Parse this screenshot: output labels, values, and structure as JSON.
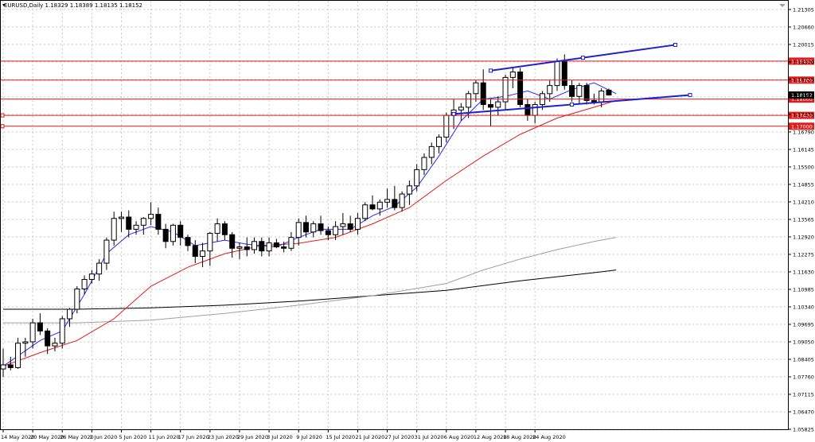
{
  "chart_data": {
    "type": "candlestick",
    "symbol": "EURUSD",
    "timeframe": "Daily",
    "title": "EURUSD,Daily  1.18329 1.18389 1.18135 1.18152",
    "x_labels": [
      "14 May 2020",
      "20 May 2020",
      "26 May 2020",
      "1 Jun 2020",
      "5 Jun 2020",
      "11 Jun 2020",
      "17 Jun 2020",
      "23 Jun 2020",
      "29 Jun 2020",
      "3 Jul 2020",
      "9 Jul 2020",
      "15 Jul 2020",
      "21 Jul 2020",
      "27 Jul 2020",
      "31 Jul 2020",
      "6 Aug 2020",
      "12 Aug 2020",
      "18 Aug 2020",
      "24 Aug 2020"
    ],
    "x_label_index": [
      0,
      4,
      8,
      12,
      16,
      20,
      24,
      28,
      32,
      36,
      40,
      44,
      48,
      52,
      56,
      60,
      64,
      68,
      72
    ],
    "y_ticks": [
      "1.21305",
      "1.20660",
      "1.20015",
      "1.19370",
      "1.18725",
      "1.18080",
      "1.17435",
      "1.16790",
      "1.16145",
      "1.15500",
      "1.14855",
      "1.14210",
      "1.13565",
      "1.12920",
      "1.12275",
      "1.11630",
      "1.10985",
      "1.10340",
      "1.09695",
      "1.09050",
      "1.08405",
      "1.07760",
      "1.07115",
      "1.06470",
      "1.05825"
    ],
    "ylim": [
      1.05825,
      1.21625
    ],
    "current_price": "1.18152",
    "horizontal_levels": [
      {
        "label": "1.19400",
        "value": 1.194
      },
      {
        "label": "1.18700",
        "value": 1.187
      },
      {
        "label": "1.18000",
        "value": 1.18
      },
      {
        "label": "1.17400",
        "value": 1.174
      },
      {
        "label": "1.17000",
        "value": 1.17
      }
    ],
    "candles": [
      {
        "o": 1.0805,
        "h": 1.088,
        "l": 1.0775,
        "c": 1.082
      },
      {
        "o": 1.082,
        "h": 1.085,
        "l": 1.08,
        "c": 1.081
      },
      {
        "o": 1.081,
        "h": 1.092,
        "l": 1.0805,
        "c": 1.09
      },
      {
        "o": 1.09,
        "h": 1.092,
        "l": 1.085,
        "c": 1.0905
      },
      {
        "o": 1.0905,
        "h": 1.099,
        "l": 1.088,
        "c": 1.0975
      },
      {
        "o": 1.0975,
        "h": 1.101,
        "l": 1.093,
        "c": 1.0945
      },
      {
        "o": 1.0945,
        "h": 1.0955,
        "l": 1.086,
        "c": 1.089
      },
      {
        "o": 1.089,
        "h": 1.092,
        "l": 1.087,
        "c": 1.09
      },
      {
        "o": 1.09,
        "h": 1.1,
        "l": 1.088,
        "c": 1.099
      },
      {
        "o": 1.099,
        "h": 1.103,
        "l": 1.096,
        "c": 1.1025
      },
      {
        "o": 1.1025,
        "h": 1.111,
        "l": 1.101,
        "c": 1.11
      },
      {
        "o": 1.11,
        "h": 1.115,
        "l": 1.108,
        "c": 1.1135
      },
      {
        "o": 1.1135,
        "h": 1.117,
        "l": 1.112,
        "c": 1.1155
      },
      {
        "o": 1.1155,
        "h": 1.121,
        "l": 1.113,
        "c": 1.1195
      },
      {
        "o": 1.1195,
        "h": 1.129,
        "l": 1.117,
        "c": 1.128
      },
      {
        "o": 1.128,
        "h": 1.1385,
        "l": 1.126,
        "c": 1.136
      },
      {
        "o": 1.136,
        "h": 1.1385,
        "l": 1.131,
        "c": 1.1365
      },
      {
        "o": 1.1365,
        "h": 1.139,
        "l": 1.129,
        "c": 1.132
      },
      {
        "o": 1.132,
        "h": 1.135,
        "l": 1.13,
        "c": 1.1335
      },
      {
        "o": 1.1335,
        "h": 1.1365,
        "l": 1.13,
        "c": 1.136
      },
      {
        "o": 1.136,
        "h": 1.142,
        "l": 1.1335,
        "c": 1.1375
      },
      {
        "o": 1.1375,
        "h": 1.14,
        "l": 1.13,
        "c": 1.132
      },
      {
        "o": 1.132,
        "h": 1.134,
        "l": 1.125,
        "c": 1.1275
      },
      {
        "o": 1.1275,
        "h": 1.134,
        "l": 1.126,
        "c": 1.1335
      },
      {
        "o": 1.1335,
        "h": 1.135,
        "l": 1.126,
        "c": 1.129
      },
      {
        "o": 1.129,
        "h": 1.13,
        "l": 1.124,
        "c": 1.126
      },
      {
        "o": 1.126,
        "h": 1.128,
        "l": 1.1195,
        "c": 1.122
      },
      {
        "o": 1.122,
        "h": 1.127,
        "l": 1.118,
        "c": 1.124
      },
      {
        "o": 1.124,
        "h": 1.131,
        "l": 1.1185,
        "c": 1.1305
      },
      {
        "o": 1.1305,
        "h": 1.136,
        "l": 1.1275,
        "c": 1.134
      },
      {
        "o": 1.134,
        "h": 1.135,
        "l": 1.128,
        "c": 1.13
      },
      {
        "o": 1.13,
        "h": 1.131,
        "l": 1.1215,
        "c": 1.125
      },
      {
        "o": 1.125,
        "h": 1.127,
        "l": 1.121,
        "c": 1.1255
      },
      {
        "o": 1.1255,
        "h": 1.129,
        "l": 1.122,
        "c": 1.1245
      },
      {
        "o": 1.1245,
        "h": 1.129,
        "l": 1.123,
        "c": 1.1275
      },
      {
        "o": 1.1275,
        "h": 1.129,
        "l": 1.122,
        "c": 1.124
      },
      {
        "o": 1.124,
        "h": 1.129,
        "l": 1.122,
        "c": 1.127
      },
      {
        "o": 1.127,
        "h": 1.1285,
        "l": 1.125,
        "c": 1.1255
      },
      {
        "o": 1.1255,
        "h": 1.1275,
        "l": 1.1235,
        "c": 1.125
      },
      {
        "o": 1.125,
        "h": 1.131,
        "l": 1.124,
        "c": 1.129
      },
      {
        "o": 1.129,
        "h": 1.136,
        "l": 1.126,
        "c": 1.1345
      },
      {
        "o": 1.1345,
        "h": 1.137,
        "l": 1.129,
        "c": 1.131
      },
      {
        "o": 1.131,
        "h": 1.135,
        "l": 1.129,
        "c": 1.134
      },
      {
        "o": 1.134,
        "h": 1.137,
        "l": 1.13,
        "c": 1.1315
      },
      {
        "o": 1.1315,
        "h": 1.133,
        "l": 1.128,
        "c": 1.13
      },
      {
        "o": 1.13,
        "h": 1.135,
        "l": 1.128,
        "c": 1.133
      },
      {
        "o": 1.133,
        "h": 1.138,
        "l": 1.13,
        "c": 1.134
      },
      {
        "o": 1.134,
        "h": 1.137,
        "l": 1.131,
        "c": 1.132
      },
      {
        "o": 1.132,
        "h": 1.138,
        "l": 1.13,
        "c": 1.136
      },
      {
        "o": 1.136,
        "h": 1.142,
        "l": 1.135,
        "c": 1.141
      },
      {
        "o": 1.141,
        "h": 1.1445,
        "l": 1.139,
        "c": 1.1395
      },
      {
        "o": 1.1395,
        "h": 1.143,
        "l": 1.137,
        "c": 1.142
      },
      {
        "o": 1.142,
        "h": 1.147,
        "l": 1.14,
        "c": 1.143
      },
      {
        "o": 1.143,
        "h": 1.148,
        "l": 1.139,
        "c": 1.14
      },
      {
        "o": 1.14,
        "h": 1.146,
        "l": 1.1385,
        "c": 1.145
      },
      {
        "o": 1.145,
        "h": 1.15,
        "l": 1.141,
        "c": 1.148
      },
      {
        "o": 1.148,
        "h": 1.156,
        "l": 1.146,
        "c": 1.154
      },
      {
        "o": 1.154,
        "h": 1.16,
        "l": 1.152,
        "c": 1.1585
      },
      {
        "o": 1.1585,
        "h": 1.164,
        "l": 1.156,
        "c": 1.1625
      },
      {
        "o": 1.1625,
        "h": 1.167,
        "l": 1.16,
        "c": 1.166
      },
      {
        "o": 1.166,
        "h": 1.175,
        "l": 1.164,
        "c": 1.174
      },
      {
        "o": 1.174,
        "h": 1.18,
        "l": 1.169,
        "c": 1.176
      },
      {
        "o": 1.176,
        "h": 1.1785,
        "l": 1.172,
        "c": 1.177
      },
      {
        "o": 1.177,
        "h": 1.183,
        "l": 1.173,
        "c": 1.182
      },
      {
        "o": 1.182,
        "h": 1.187,
        "l": 1.179,
        "c": 1.186
      },
      {
        "o": 1.186,
        "h": 1.191,
        "l": 1.176,
        "c": 1.178
      },
      {
        "o": 1.178,
        "h": 1.18,
        "l": 1.17,
        "c": 1.177
      },
      {
        "o": 1.177,
        "h": 1.181,
        "l": 1.174,
        "c": 1.179
      },
      {
        "o": 1.179,
        "h": 1.189,
        "l": 1.176,
        "c": 1.188
      },
      {
        "o": 1.188,
        "h": 1.1915,
        "l": 1.184,
        "c": 1.19
      },
      {
        "o": 1.19,
        "h": 1.1915,
        "l": 1.177,
        "c": 1.178
      },
      {
        "o": 1.178,
        "h": 1.18,
        "l": 1.172,
        "c": 1.174
      },
      {
        "o": 1.174,
        "h": 1.179,
        "l": 1.171,
        "c": 1.178
      },
      {
        "o": 1.178,
        "h": 1.183,
        "l": 1.176,
        "c": 1.182
      },
      {
        "o": 1.182,
        "h": 1.187,
        "l": 1.179,
        "c": 1.185
      },
      {
        "o": 1.185,
        "h": 1.195,
        "l": 1.183,
        "c": 1.194
      },
      {
        "o": 1.194,
        "h": 1.1965,
        "l": 1.1835,
        "c": 1.185
      },
      {
        "o": 1.185,
        "h": 1.187,
        "l": 1.179,
        "c": 1.181
      },
      {
        "o": 1.181,
        "h": 1.186,
        "l": 1.178,
        "c": 1.185
      },
      {
        "o": 1.185,
        "h": 1.186,
        "l": 1.178,
        "c": 1.1795
      },
      {
        "o": 1.1795,
        "h": 1.182,
        "l": 1.178,
        "c": 1.179
      },
      {
        "o": 1.179,
        "h": 1.184,
        "l": 1.177,
        "c": 1.183
      },
      {
        "o": 1.1833,
        "h": 1.1839,
        "l": 1.1813,
        "c": 1.1815
      }
    ],
    "ma_blue": [
      [
        0,
        1.0815
      ],
      [
        5,
        1.091
      ],
      [
        8,
        1.0945
      ],
      [
        11,
        1.108
      ],
      [
        14,
        1.123
      ],
      [
        17,
        1.13
      ],
      [
        20,
        1.133
      ],
      [
        23,
        1.131
      ],
      [
        26,
        1.126
      ],
      [
        30,
        1.128
      ],
      [
        33,
        1.1265
      ],
      [
        37,
        1.1255
      ],
      [
        40,
        1.129
      ],
      [
        43,
        1.132
      ],
      [
        47,
        1.132
      ],
      [
        50,
        1.137
      ],
      [
        53,
        1.1405
      ],
      [
        56,
        1.1475
      ],
      [
        59,
        1.159
      ],
      [
        62,
        1.172
      ],
      [
        65,
        1.18
      ],
      [
        68,
        1.181
      ],
      [
        71,
        1.183
      ],
      [
        74,
        1.18
      ],
      [
        77,
        1.1835
      ],
      [
        80,
        1.186
      ],
      [
        83,
        1.182
      ]
    ],
    "ma_red": [
      [
        0,
        1.0815
      ],
      [
        5,
        1.0865
      ],
      [
        10,
        1.091
      ],
      [
        15,
        1.099
      ],
      [
        20,
        1.111
      ],
      [
        25,
        1.118
      ],
      [
        30,
        1.123
      ],
      [
        35,
        1.126
      ],
      [
        40,
        1.1268
      ],
      [
        45,
        1.129
      ],
      [
        50,
        1.134
      ],
      [
        55,
        1.14
      ],
      [
        60,
        1.15
      ],
      [
        65,
        1.159
      ],
      [
        70,
        1.167
      ],
      [
        75,
        1.173
      ],
      [
        80,
        1.177
      ],
      [
        83,
        1.1795
      ]
    ],
    "ma_gray": [
      [
        0,
        1.0975
      ],
      [
        10,
        1.0975
      ],
      [
        20,
        1.0985
      ],
      [
        30,
        1.101
      ],
      [
        40,
        1.104
      ],
      [
        50,
        1.1075
      ],
      [
        60,
        1.112
      ],
      [
        65,
        1.117
      ],
      [
        70,
        1.121
      ],
      [
        75,
        1.1245
      ],
      [
        80,
        1.1275
      ],
      [
        83,
        1.129
      ]
    ],
    "ma_black": [
      [
        0,
        1.1025
      ],
      [
        10,
        1.1025
      ],
      [
        20,
        1.103
      ],
      [
        30,
        1.104
      ],
      [
        40,
        1.1055
      ],
      [
        50,
        1.1075
      ],
      [
        60,
        1.1095
      ],
      [
        70,
        1.113
      ],
      [
        80,
        1.116
      ],
      [
        83,
        1.117
      ]
    ],
    "trendlines": [
      {
        "from": [
          66,
          1.1905
        ],
        "to": [
          91,
          1.2
        ]
      },
      {
        "from": [
          61,
          1.1745
        ],
        "to": [
          93,
          1.1815
        ]
      }
    ],
    "colors": {
      "bull": "#ffffff",
      "bear": "#000000",
      "outline": "#000000",
      "ma_blue": "#2b2bff",
      "ma_red": "#e31a1a",
      "ma_gray": "#a0a0a0",
      "ma_black": "#000000",
      "trend": "#1f1fd6",
      "level": "#e31a1a",
      "label_bg": "#e31a1a",
      "grid": "#c8c8c8"
    }
  }
}
